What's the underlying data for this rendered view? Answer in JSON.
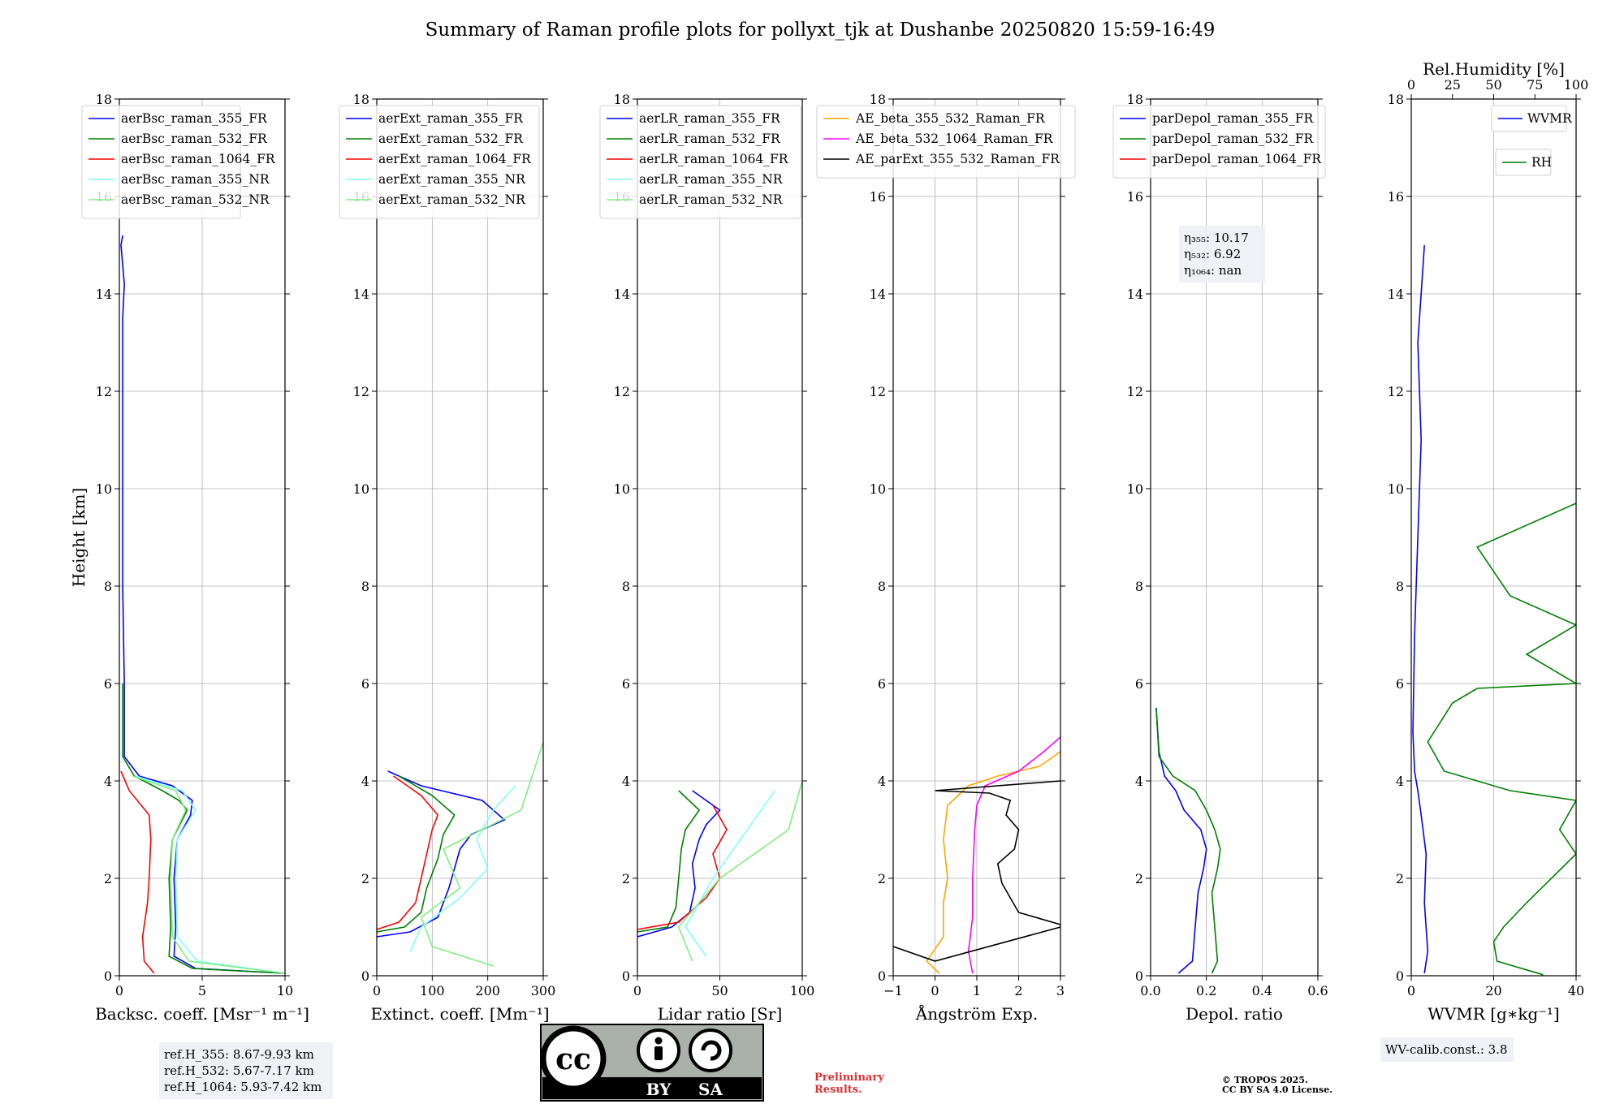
{
  "title": "Summary of Raman profile plots for pollyxt_tjk at Dushanbe 20250820 15:59-16:49",
  "ylabel": "Height [km]",
  "colors": {
    "blue": "#0000ff",
    "green": "#008000",
    "red": "#ff0000",
    "cyan": "#80ffff",
    "lightgreen": "#80ee80",
    "orange": "#ffa500",
    "magenta": "#ff00ff",
    "black": "#000000"
  },
  "chart_data": [
    {
      "type": "line",
      "xlabel": "Backsc. coeff. [Msr⁻¹ m⁻¹]",
      "xlim": [
        0,
        10
      ],
      "ylim": [
        0,
        18
      ],
      "x_ticks": [
        "0",
        "5",
        "10"
      ],
      "y_ticks": [
        "0",
        "2",
        "4",
        "6",
        "8",
        "10",
        "12",
        "14",
        "16",
        "18"
      ],
      "legend": [
        "aerBsc_raman_355_FR",
        "aerBsc_raman_532_FR",
        "aerBsc_raman_1064_FR",
        "aerBsc_raman_355_NR",
        "aerBsc_raman_532_NR"
      ],
      "series": [
        {
          "name": "aerBsc_raman_355_FR",
          "color": "blue",
          "x": [
            10,
            4.6,
            3.3,
            3.4,
            3.3,
            3.5,
            4.3,
            4.4,
            3.2,
            1.2,
            0.3,
            0.3,
            0.2,
            0.2,
            0.2,
            0.2,
            0.3,
            0.1,
            0.2
          ],
          "y": [
            0.05,
            0.15,
            0.4,
            1.0,
            2.0,
            2.8,
            3.3,
            3.6,
            3.9,
            4.1,
            4.5,
            6.0,
            8.0,
            10.0,
            12.0,
            13.5,
            14.2,
            15.0,
            15.2
          ]
        },
        {
          "name": "aerBsc_raman_532_FR",
          "color": "green",
          "x": [
            10,
            4.4,
            3.0,
            3.1,
            3.0,
            3.2,
            4.1,
            3.6,
            2.6,
            0.9,
            0.2,
            0.2
          ],
          "y": [
            0.05,
            0.15,
            0.4,
            1.0,
            2.0,
            2.8,
            3.4,
            3.6,
            3.8,
            4.1,
            4.5,
            6.0
          ]
        },
        {
          "name": "aerBsc_raman_1064_FR",
          "color": "red",
          "x": [
            2.1,
            1.5,
            1.4,
            1.7,
            1.8,
            1.9,
            1.8,
            0.6,
            0.1
          ],
          "y": [
            0.05,
            0.3,
            0.8,
            1.5,
            2.0,
            2.8,
            3.3,
            3.8,
            4.2
          ]
        },
        {
          "name": "aerBsc_raman_355_NR",
          "color": "cyan",
          "x": [
            10,
            4.7,
            3.5,
            3.4,
            3.5,
            4.6,
            3.8,
            1.0
          ],
          "y": [
            0.05,
            0.3,
            0.8,
            2.0,
            2.8,
            3.4,
            3.8,
            4.1
          ]
        },
        {
          "name": "aerBsc_raman_532_NR",
          "color": "lightgreen",
          "x": [
            10,
            4.2,
            3.2,
            3.1,
            3.2,
            4.0,
            3.4,
            0.8
          ],
          "y": [
            0.05,
            0.3,
            0.8,
            2.0,
            2.8,
            3.4,
            3.8,
            4.1
          ]
        }
      ],
      "annotation": [
        "ref.H_355: 8.67-9.93 km",
        "ref.H_532: 5.67-7.17 km",
        "ref.H_1064: 5.93-7.42 km"
      ]
    },
    {
      "type": "line",
      "xlabel": "Extinct. coeff. [Mm⁻¹]",
      "xlim": [
        0,
        300
      ],
      "ylim": [
        0,
        18
      ],
      "x_ticks": [
        "0",
        "100",
        "200",
        "300"
      ],
      "y_ticks": [
        "0",
        "2",
        "4",
        "6",
        "8",
        "10",
        "12",
        "14",
        "16",
        "18"
      ],
      "legend": [
        "aerExt_raman_355_FR",
        "aerExt_raman_532_FR",
        "aerExt_raman_1064_FR",
        "aerExt_raman_355_NR",
        "aerExt_raman_532_NR"
      ],
      "series": [
        {
          "name": "aerExt_raman_355_FR",
          "color": "blue",
          "x": [
            0,
            60,
            110,
            130,
            140,
            150,
            170,
            230,
            190,
            80,
            20
          ],
          "y": [
            0.8,
            0.9,
            1.2,
            1.8,
            2.2,
            2.6,
            2.9,
            3.2,
            3.6,
            3.9,
            4.2
          ]
        },
        {
          "name": "aerExt_raman_532_FR",
          "color": "green",
          "x": [
            0,
            50,
            80,
            90,
            110,
            120,
            140,
            100,
            40
          ],
          "y": [
            0.9,
            1.0,
            1.3,
            1.8,
            2.4,
            2.9,
            3.3,
            3.7,
            4.1
          ]
        },
        {
          "name": "aerExt_raman_1064_FR",
          "color": "red",
          "x": [
            0,
            40,
            70,
            80,
            90,
            100,
            110,
            80,
            30
          ],
          "y": [
            0.95,
            1.1,
            1.5,
            2.0,
            2.5,
            3.0,
            3.3,
            3.7,
            4.1
          ]
        },
        {
          "name": "aerExt_raman_355_NR",
          "color": "cyan",
          "x": [
            60,
            80,
            150,
            200,
            180,
            210,
            250
          ],
          "y": [
            0.5,
            1.0,
            1.6,
            2.2,
            2.8,
            3.4,
            3.9
          ]
        },
        {
          "name": "aerExt_raman_532_NR",
          "color": "lightgreen",
          "x": [
            210,
            100,
            80,
            150,
            120,
            260,
            300
          ],
          "y": [
            0.2,
            0.6,
            1.2,
            1.8,
            2.6,
            3.4,
            4.8
          ]
        }
      ]
    },
    {
      "type": "line",
      "xlabel": "Lidar ratio [Sr]",
      "xlim": [
        0,
        120
      ],
      "ylim": [
        0,
        18
      ],
      "x_ticks": [
        "0",
        "50",
        "100"
      ],
      "y_ticks": [
        "0",
        "2",
        "4",
        "6",
        "8",
        "10",
        "12",
        "14",
        "16",
        "18"
      ],
      "legend": [
        "aerLR_raman_355_FR",
        "aerLR_raman_532_FR",
        "aerLR_raman_1064_FR",
        "aerLR_raman_355_NR",
        "aerLR_raman_532_NR"
      ],
      "series": [
        {
          "name": "aerLR_raman_355_FR",
          "color": "blue",
          "x": [
            0,
            25,
            38,
            42,
            40,
            45,
            50,
            60,
            40
          ],
          "y": [
            0.8,
            1.0,
            1.3,
            1.8,
            2.3,
            2.8,
            3.1,
            3.4,
            3.8
          ]
        },
        {
          "name": "aerLR_raman_532_FR",
          "color": "green",
          "x": [
            0,
            22,
            28,
            30,
            32,
            35,
            45,
            30
          ],
          "y": [
            0.9,
            1.0,
            1.4,
            2.0,
            2.6,
            3.0,
            3.4,
            3.8
          ]
        },
        {
          "name": "aerLR_raman_1064_FR",
          "color": "red",
          "x": [
            0,
            30,
            50,
            60,
            55,
            65,
            55
          ],
          "y": [
            0.95,
            1.1,
            1.6,
            2.0,
            2.5,
            3.0,
            3.5
          ]
        },
        {
          "name": "aerLR_raman_355_NR",
          "color": "cyan",
          "x": [
            50,
            35,
            55,
            80,
            100
          ],
          "y": [
            0.4,
            1.0,
            2.0,
            3.0,
            3.8
          ]
        },
        {
          "name": "aerLR_raman_532_NR",
          "color": "lightgreen",
          "x": [
            40,
            30,
            60,
            110,
            120
          ],
          "y": [
            0.3,
            1.0,
            2.0,
            3.0,
            4.0
          ]
        }
      ]
    },
    {
      "type": "line",
      "xlabel": "Ångström Exp.",
      "xlim": [
        -1,
        3
      ],
      "ylim": [
        0,
        18
      ],
      "x_ticks": [
        "−1",
        "0",
        "1",
        "2",
        "3"
      ],
      "y_ticks": [
        "0",
        "2",
        "4",
        "6",
        "8",
        "10",
        "12",
        "14",
        "16",
        "18"
      ],
      "legend": [
        "AE_beta_355_532_Raman_FR",
        "AE_beta_532_1064_Raman_FR",
        "AE_parExt_355_532_Raman_FR"
      ],
      "series": [
        {
          "name": "AE_beta_355_532_Raman_FR",
          "color": "orange",
          "x": [
            0.1,
            -0.2,
            0.2,
            0.2,
            0.3,
            0.2,
            0.3,
            0.8,
            1.5,
            2.5,
            3.0
          ],
          "y": [
            0.05,
            0.3,
            0.8,
            1.5,
            2.0,
            2.8,
            3.5,
            3.9,
            4.1,
            4.3,
            4.6
          ]
        },
        {
          "name": "AE_beta_532_1064_Raman_FR",
          "color": "magenta",
          "x": [
            0.9,
            0.8,
            0.9,
            0.9,
            0.95,
            1.0,
            1.2,
            2.0,
            2.6,
            3.0
          ],
          "y": [
            0.05,
            0.5,
            1.2,
            2.0,
            3.0,
            3.5,
            3.9,
            4.2,
            4.6,
            4.9
          ]
        },
        {
          "name": "AE_parExt_355_532_Raman_FR",
          "color": "black",
          "x": [
            -1,
            0.0,
            3.0,
            3.0,
            2.0,
            1.8,
            1.6,
            1.5,
            1.9,
            2.0,
            1.7,
            1.8,
            1.3,
            0.0,
            3.0
          ],
          "y": [
            0.6,
            0.3,
            1.0,
            1.05,
            1.3,
            1.6,
            1.9,
            2.3,
            2.6,
            3.0,
            3.3,
            3.6,
            3.75,
            3.8,
            4.0
          ]
        }
      ]
    },
    {
      "type": "line",
      "xlabel": "Depol. ratio",
      "xlim": [
        0,
        0.6
      ],
      "ylim": [
        0,
        18
      ],
      "x_ticks": [
        "0.0",
        "0.2",
        "0.4",
        "0.6"
      ],
      "y_ticks": [
        "0",
        "2",
        "4",
        "6",
        "8",
        "10",
        "12",
        "14",
        "16",
        "18"
      ],
      "legend": [
        "parDepol_raman_355_FR",
        "parDepol_raman_532_FR",
        "parDepol_raman_1064_FR"
      ],
      "series": [
        {
          "name": "parDepol_raman_355_FR",
          "color": "blue",
          "x": [
            0.1,
            0.15,
            0.16,
            0.17,
            0.19,
            0.2,
            0.18,
            0.12,
            0.09,
            0.05,
            0.03,
            0.02
          ],
          "y": [
            0.05,
            0.3,
            1.0,
            1.7,
            2.2,
            2.6,
            3.0,
            3.4,
            3.8,
            4.1,
            4.6,
            5.5
          ]
        },
        {
          "name": "parDepol_raman_532_FR",
          "color": "green",
          "x": [
            0.22,
            0.24,
            0.23,
            0.22,
            0.24,
            0.25,
            0.23,
            0.2,
            0.16,
            0.08,
            0.03,
            0.02
          ],
          "y": [
            0.05,
            0.3,
            1.0,
            1.7,
            2.2,
            2.6,
            3.0,
            3.4,
            3.8,
            4.1,
            4.5,
            5.5
          ]
        }
      ],
      "annotation": [
        "η₃₅₅: 10.17",
        "η₅₃₂: 6.92",
        "η₁₀₆₄: nan"
      ]
    },
    {
      "type": "line",
      "xlabel": "WVMR [g∗kg⁻¹]",
      "x2label": "Rel.Humidity [%]",
      "xlim": [
        0,
        50
      ],
      "x2lim": [
        0,
        100
      ],
      "ylim": [
        0,
        18
      ],
      "x_ticks": [
        "0",
        "20",
        "40"
      ],
      "x2_ticks": [
        "0",
        "25",
        "50",
        "75",
        "100"
      ],
      "y_ticks": [
        "0",
        "2",
        "4",
        "6",
        "8",
        "10",
        "12",
        "14",
        "16",
        "18"
      ],
      "legend": [
        "WVMR",
        "RH"
      ],
      "series": [
        {
          "name": "WVMR",
          "color": "blue",
          "x": [
            4,
            5,
            4,
            4.5,
            3,
            2,
            1,
            0.5,
            1,
            2,
            3,
            2,
            3,
            4
          ],
          "y": [
            0.05,
            0.5,
            1.5,
            2.5,
            3.3,
            3.8,
            4.2,
            5.0,
            7.0,
            9.0,
            11.0,
            13.0,
            14.0,
            15.0
          ]
        },
        {
          "name": "RH",
          "color": "green",
          "x": [
            80,
            52,
            50,
            56,
            70,
            100,
            90,
            100,
            60,
            20,
            10,
            25,
            40,
            100,
            70,
            100,
            60,
            40,
            100
          ],
          "y": [
            0.02,
            0.3,
            0.7,
            1.0,
            1.5,
            2.5,
            3.0,
            3.6,
            3.8,
            4.2,
            4.8,
            5.6,
            5.9,
            6.0,
            6.6,
            7.2,
            7.8,
            8.8,
            9.7
          ]
        }
      ],
      "annotation": [
        "WV-calib.const.: 3.8"
      ]
    }
  ],
  "license": {
    "by": "BY",
    "sa": "SA",
    "cc": "cc"
  },
  "preliminary": [
    "Preliminary",
    "Results."
  ],
  "copyright": [
    "© TROPOS 2025.",
    "CC BY SA 4.0 License."
  ]
}
